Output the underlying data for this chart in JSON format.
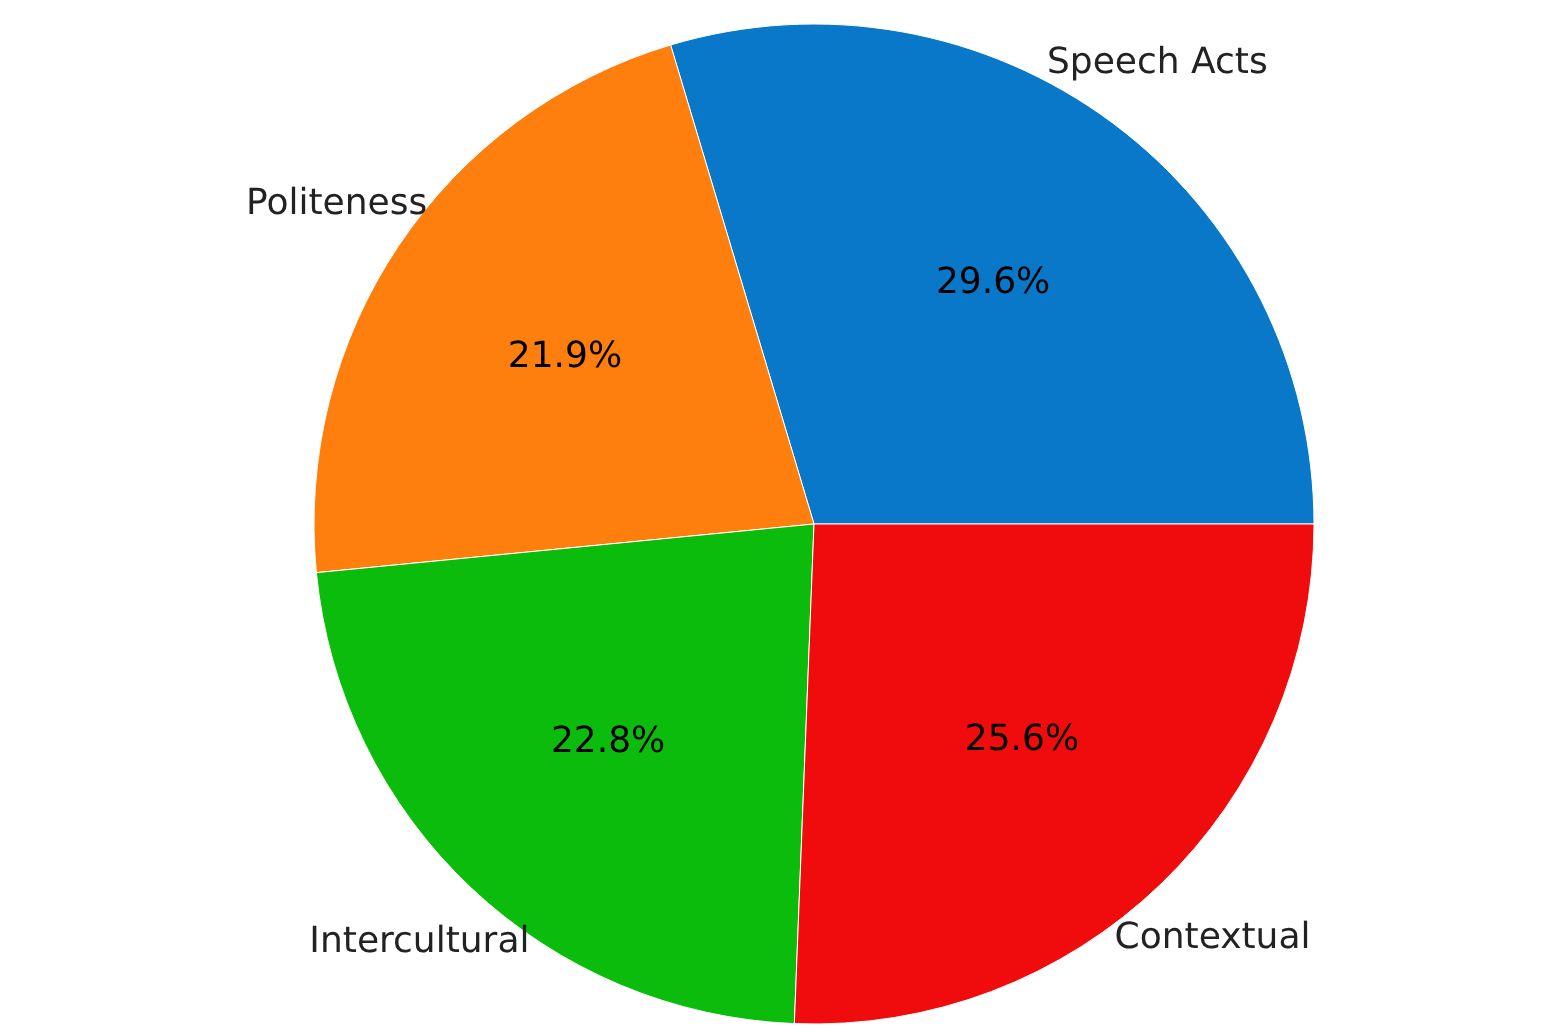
{
  "chart_data": {
    "type": "pie",
    "categories": [
      "Speech Acts",
      "Politeness",
      "Intercultural",
      "Contextual"
    ],
    "values": [
      29.6,
      21.9,
      22.8,
      25.6
    ],
    "value_labels": [
      "29.6%",
      "21.9%",
      "22.8%",
      "25.6%"
    ],
    "colors": [
      "#0a78c8",
      "#ff7f0e",
      "#0cbc0c",
      "#f00c0c"
    ]
  }
}
